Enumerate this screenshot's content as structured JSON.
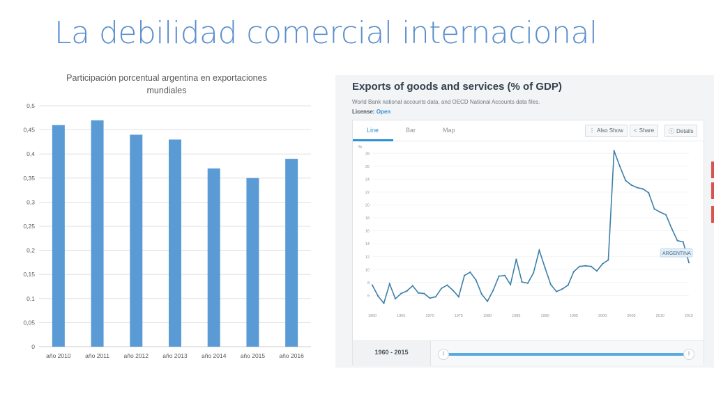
{
  "slide": {
    "title": "La debilidad comercial internacional"
  },
  "chart_data": [
    {
      "type": "bar",
      "title": "Participación porcentual argentina en exportaciones mundiales",
      "title_lines": [
        "Participación porcentual argentina en exportaciones",
        "mundiales"
      ],
      "categories": [
        "año 2010",
        "año 2011",
        "año 2012",
        "año 2013",
        "año 2014",
        "año 2015",
        "año 2016"
      ],
      "values": [
        0.46,
        0.47,
        0.44,
        0.43,
        0.37,
        0.35,
        0.39
      ],
      "yticks": [
        "0",
        "0,05",
        "0,1",
        "0,15",
        "0,2",
        "0,25",
        "0,3",
        "0,35",
        "0,4",
        "0,45",
        "0,5"
      ],
      "ylim": [
        0,
        0.5
      ],
      "xlabel": "",
      "ylabel": "",
      "grid": true,
      "color": "#5b9bd5"
    },
    {
      "type": "line",
      "title": "Exports of goods and services (% of GDP)",
      "xlabel": "",
      "ylabel": "%",
      "x": [
        1960,
        1961,
        1962,
        1963,
        1964,
        1965,
        1966,
        1967,
        1968,
        1969,
        1970,
        1971,
        1972,
        1973,
        1974,
        1975,
        1976,
        1977,
        1978,
        1979,
        1980,
        1981,
        1982,
        1983,
        1984,
        1985,
        1986,
        1987,
        1988,
        1989,
        1990,
        1991,
        1992,
        1993,
        1994,
        1995,
        1996,
        1997,
        1998,
        1999,
        2000,
        2001,
        2002,
        2003,
        2004,
        2005,
        2006,
        2007,
        2008,
        2009,
        2010,
        2011,
        2012,
        2013,
        2014,
        2015
      ],
      "y": [
        7.6,
        5.9,
        4.8,
        7.8,
        5.5,
        6.3,
        6.7,
        7.5,
        6.4,
        6.3,
        5.6,
        5.8,
        7.1,
        7.6,
        6.8,
        5.8,
        9.1,
        9.6,
        8.4,
        6.2,
        5.1,
        6.8,
        9.0,
        9.1,
        7.7,
        11.6,
        8.1,
        7.9,
        9.5,
        13.0,
        10.3,
        7.7,
        6.6,
        7.0,
        7.6,
        9.7,
        10.5,
        10.6,
        10.5,
        9.8,
        10.9,
        11.5,
        28.4,
        26.0,
        23.8,
        23.1,
        22.7,
        22.5,
        21.9,
        19.4,
        18.9,
        18.5,
        16.4,
        14.5,
        14.3,
        11.1
      ],
      "xticks": [
        1960,
        1965,
        1970,
        1975,
        1980,
        1985,
        1990,
        1995,
        2000,
        2005,
        2010,
        2015
      ],
      "yticks": [
        6,
        8,
        10,
        12,
        14,
        16,
        18,
        20,
        22,
        24,
        26,
        28
      ],
      "xlim": [
        1960,
        2015
      ],
      "ylim": [
        4,
        29
      ],
      "series": [
        {
          "name": "ARGENTINA"
        }
      ],
      "grid": true,
      "color": "#3d7fa8"
    }
  ],
  "wb": {
    "subtitle": "World Bank national accounts data, and OECD National Accounts data files.",
    "license_label": "License:",
    "license_value": "Open",
    "tabs": [
      "Line",
      "Bar",
      "Map"
    ],
    "buttons": {
      "also_show": "Also Show",
      "share": "Share",
      "details": "Details"
    },
    "range_label": "1960 - 2015",
    "slider_left": "||",
    "slider_right": "||"
  },
  "colors": {
    "title": "#5b8fcc",
    "accent": "#2b8fd6"
  }
}
